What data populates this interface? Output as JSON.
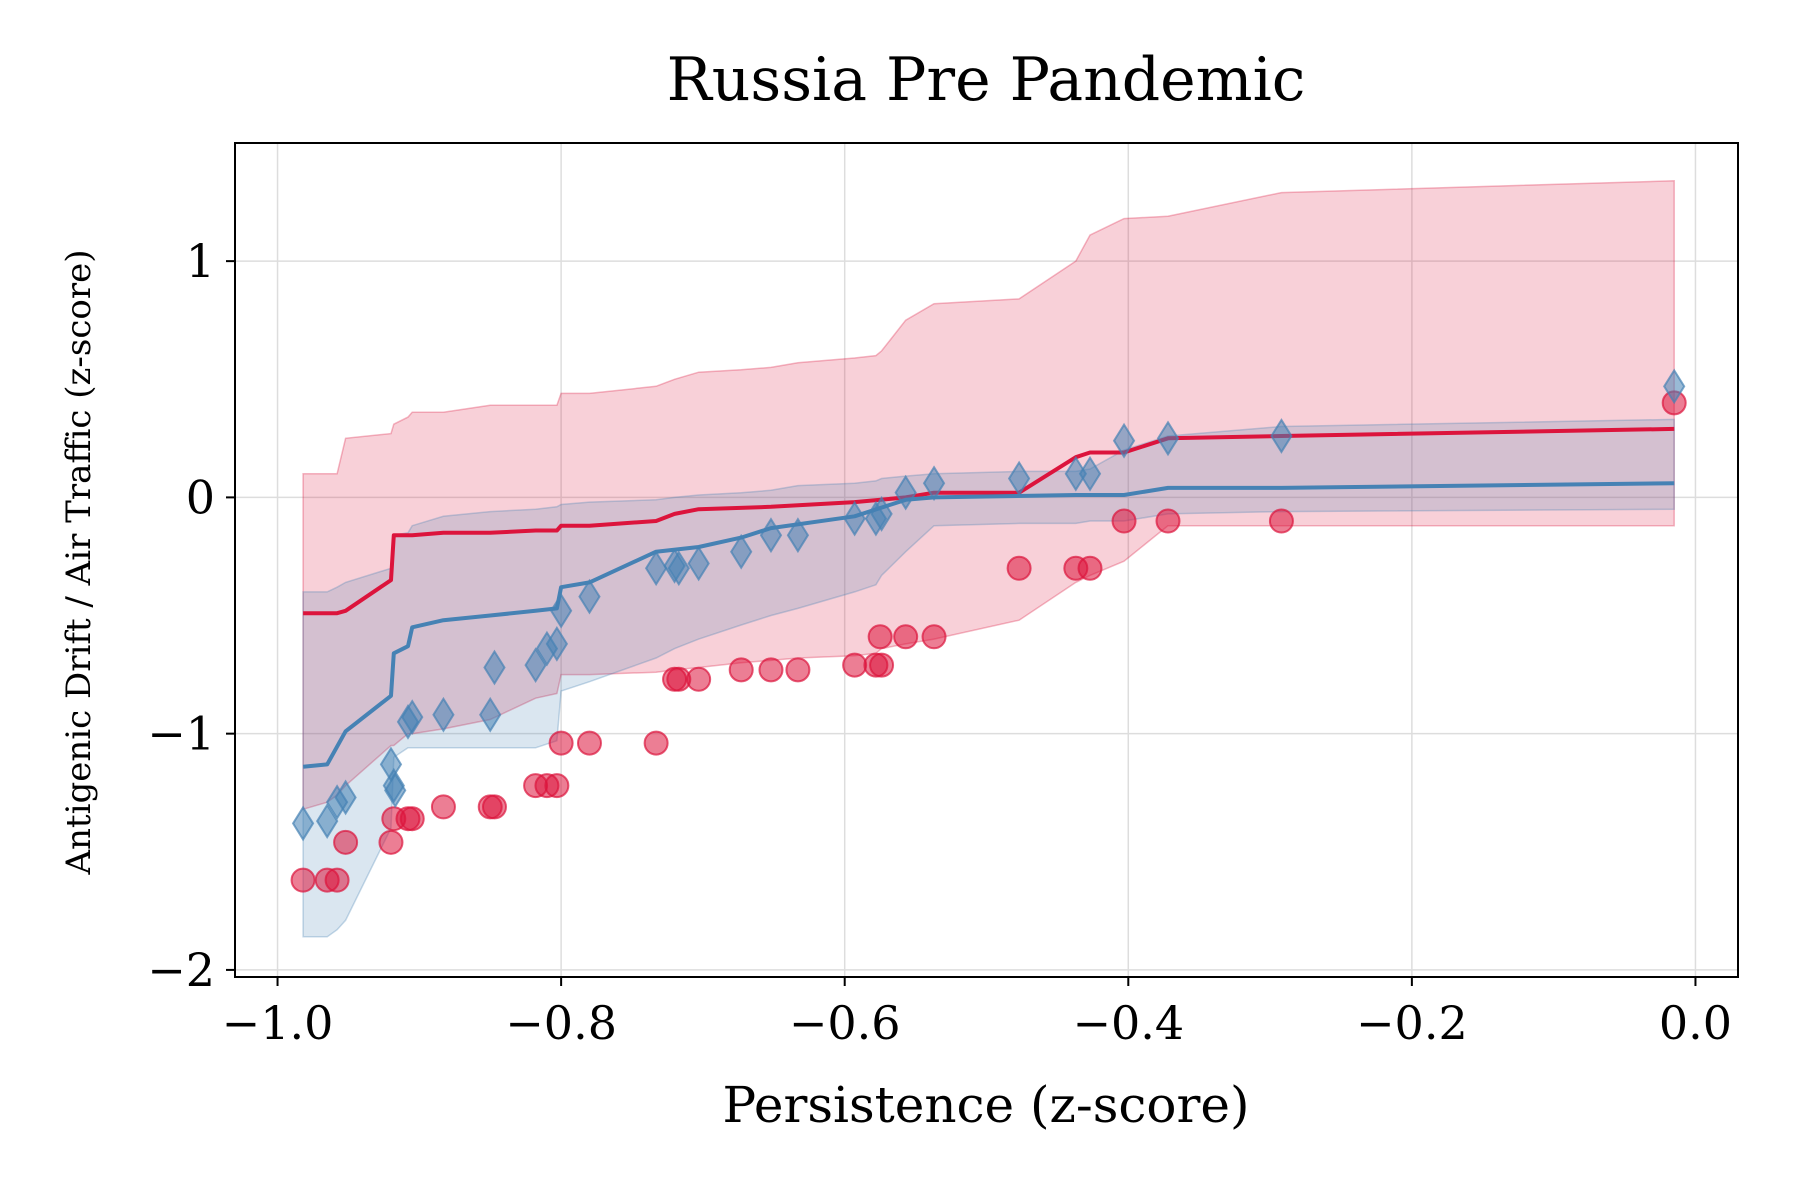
{
  "chart_data": {
    "type": "line",
    "title": "Russia Pre Pandemic",
    "xlabel": "Persistence (z-score)",
    "ylabel": "Antigenic Drift / Air Traffic (z-score)",
    "xlim": [
      -1.03,
      0.03
    ],
    "ylim": [
      -2.03,
      1.5
    ],
    "xticks": [
      -1.0,
      -0.8,
      -0.6,
      -0.4,
      -0.2,
      0.0
    ],
    "xtick_labels": [
      "−1.0",
      "−0.8",
      "−0.6",
      "−0.4",
      "−0.2",
      "0.0"
    ],
    "yticks": [
      -2,
      -1,
      0,
      1
    ],
    "ytick_labels": [
      "−2",
      "−1",
      "0",
      "1"
    ],
    "grid": true,
    "legend": false,
    "colors": {
      "red": "#dc143c",
      "blue": "#4682b4"
    },
    "series": [
      {
        "marker": "circle",
        "color": "#dc143c",
        "points": [
          [
            -0.982,
            -1.62
          ],
          [
            -0.965,
            -1.62
          ],
          [
            -0.958,
            -1.62
          ],
          [
            -0.952,
            -1.46
          ],
          [
            -0.92,
            -1.46
          ],
          [
            -0.918,
            -1.36
          ],
          [
            -0.908,
            -1.36
          ],
          [
            -0.905,
            -1.36
          ],
          [
            -0.883,
            -1.31
          ],
          [
            -0.85,
            -1.31
          ],
          [
            -0.847,
            -1.31
          ],
          [
            -0.818,
            -1.22
          ],
          [
            -0.81,
            -1.22
          ],
          [
            -0.803,
            -1.22
          ],
          [
            -0.8,
            -1.04
          ],
          [
            -0.78,
            -1.04
          ],
          [
            -0.733,
            -1.04
          ],
          [
            -0.72,
            -0.77
          ],
          [
            -0.717,
            -0.77
          ],
          [
            -0.703,
            -0.77
          ],
          [
            -0.673,
            -0.73
          ],
          [
            -0.652,
            -0.73
          ],
          [
            -0.633,
            -0.73
          ],
          [
            -0.593,
            -0.71
          ],
          [
            -0.578,
            -0.71
          ],
          [
            -0.574,
            -0.71
          ],
          [
            -0.575,
            -0.59
          ],
          [
            -0.557,
            -0.59
          ],
          [
            -0.537,
            -0.59
          ],
          [
            -0.477,
            -0.3
          ],
          [
            -0.437,
            -0.3
          ],
          [
            -0.427,
            -0.3
          ],
          [
            -0.403,
            -0.1
          ],
          [
            -0.372,
            -0.1
          ],
          [
            -0.292,
            -0.1
          ],
          [
            -0.015,
            0.4
          ]
        ]
      },
      {
        "marker": "diamond",
        "color": "#4682b4",
        "points": [
          [
            -0.982,
            -1.38
          ],
          [
            -0.965,
            -1.37
          ],
          [
            -0.958,
            -1.29
          ],
          [
            -0.952,
            -1.27
          ],
          [
            -0.92,
            -1.13
          ],
          [
            -0.918,
            -1.22
          ],
          [
            -0.917,
            -1.24
          ],
          [
            -0.908,
            -0.95
          ],
          [
            -0.905,
            -0.93
          ],
          [
            -0.883,
            -0.92
          ],
          [
            -0.85,
            -0.92
          ],
          [
            -0.847,
            -0.72
          ],
          [
            -0.818,
            -0.71
          ],
          [
            -0.81,
            -0.64
          ],
          [
            -0.803,
            -0.62
          ],
          [
            -0.8,
            -0.48
          ],
          [
            -0.78,
            -0.42
          ],
          [
            -0.733,
            -0.3
          ],
          [
            -0.72,
            -0.29
          ],
          [
            -0.717,
            -0.3
          ],
          [
            -0.703,
            -0.28
          ],
          [
            -0.673,
            -0.23
          ],
          [
            -0.652,
            -0.16
          ],
          [
            -0.633,
            -0.16
          ],
          [
            -0.593,
            -0.09
          ],
          [
            -0.578,
            -0.09
          ],
          [
            -0.574,
            -0.07
          ],
          [
            -0.557,
            0.02
          ],
          [
            -0.537,
            0.06
          ],
          [
            -0.477,
            0.08
          ],
          [
            -0.437,
            0.1
          ],
          [
            -0.427,
            0.1
          ],
          [
            -0.403,
            0.24
          ],
          [
            -0.372,
            0.25
          ],
          [
            -0.292,
            0.26
          ],
          [
            -0.015,
            0.47
          ]
        ]
      },
      {
        "kind": "line",
        "color": "#dc143c",
        "points": [
          [
            -0.982,
            -0.49
          ],
          [
            -0.958,
            -0.49
          ],
          [
            -0.952,
            -0.48
          ],
          [
            -0.92,
            -0.35
          ],
          [
            -0.918,
            -0.16
          ],
          [
            -0.905,
            -0.16
          ],
          [
            -0.883,
            -0.15
          ],
          [
            -0.85,
            -0.15
          ],
          [
            -0.818,
            -0.14
          ],
          [
            -0.803,
            -0.14
          ],
          [
            -0.8,
            -0.12
          ],
          [
            -0.78,
            -0.12
          ],
          [
            -0.733,
            -0.1
          ],
          [
            -0.72,
            -0.07
          ],
          [
            -0.703,
            -0.05
          ],
          [
            -0.652,
            -0.04
          ],
          [
            -0.593,
            -0.02
          ],
          [
            -0.557,
            0.0
          ],
          [
            -0.537,
            0.02
          ],
          [
            -0.477,
            0.02
          ],
          [
            -0.437,
            0.17
          ],
          [
            -0.427,
            0.19
          ],
          [
            -0.403,
            0.19
          ],
          [
            -0.372,
            0.25
          ],
          [
            -0.292,
            0.26
          ],
          [
            -0.015,
            0.29
          ]
        ]
      },
      {
        "kind": "line",
        "color": "#4682b4",
        "points": [
          [
            -0.982,
            -1.14
          ],
          [
            -0.965,
            -1.13
          ],
          [
            -0.952,
            -0.99
          ],
          [
            -0.92,
            -0.84
          ],
          [
            -0.918,
            -0.66
          ],
          [
            -0.908,
            -0.63
          ],
          [
            -0.905,
            -0.55
          ],
          [
            -0.883,
            -0.52
          ],
          [
            -0.85,
            -0.5
          ],
          [
            -0.818,
            -0.48
          ],
          [
            -0.803,
            -0.47
          ],
          [
            -0.8,
            -0.38
          ],
          [
            -0.78,
            -0.36
          ],
          [
            -0.733,
            -0.23
          ],
          [
            -0.703,
            -0.21
          ],
          [
            -0.673,
            -0.17
          ],
          [
            -0.652,
            -0.13
          ],
          [
            -0.593,
            -0.08
          ],
          [
            -0.557,
            -0.01
          ],
          [
            -0.537,
            0.0
          ],
          [
            -0.437,
            0.01
          ],
          [
            -0.403,
            0.01
          ],
          [
            -0.372,
            0.04
          ],
          [
            -0.292,
            0.04
          ],
          [
            -0.015,
            0.06
          ]
        ]
      },
      {
        "kind": "band",
        "color": "#dc143c",
        "x": [
          -0.982,
          -0.965,
          -0.958,
          -0.952,
          -0.92,
          -0.918,
          -0.908,
          -0.905,
          -0.883,
          -0.85,
          -0.818,
          -0.803,
          -0.8,
          -0.78,
          -0.733,
          -0.72,
          -0.703,
          -0.673,
          -0.652,
          -0.633,
          -0.593,
          -0.578,
          -0.574,
          -0.557,
          -0.537,
          -0.477,
          -0.437,
          -0.427,
          -0.403,
          -0.372,
          -0.292,
          -0.015
        ],
        "lower": [
          -1.32,
          -1.29,
          -1.26,
          -1.22,
          -1.05,
          -1.05,
          -1.0,
          -1.0,
          -0.98,
          -0.94,
          -0.85,
          -0.83,
          -0.75,
          -0.75,
          -0.74,
          -0.73,
          -0.72,
          -0.7,
          -0.69,
          -0.68,
          -0.67,
          -0.66,
          -0.64,
          -0.62,
          -0.6,
          -0.52,
          -0.36,
          -0.33,
          -0.27,
          -0.12,
          -0.12,
          -0.12
        ],
        "upper": [
          0.1,
          0.1,
          0.1,
          0.25,
          0.27,
          0.31,
          0.34,
          0.36,
          0.36,
          0.39,
          0.39,
          0.39,
          0.44,
          0.44,
          0.47,
          0.5,
          0.53,
          0.54,
          0.55,
          0.57,
          0.59,
          0.6,
          0.62,
          0.75,
          0.82,
          0.84,
          1.0,
          1.11,
          1.18,
          1.19,
          1.29,
          1.34
        ]
      },
      {
        "kind": "band",
        "color": "#4682b4",
        "x": [
          -0.982,
          -0.965,
          -0.958,
          -0.952,
          -0.92,
          -0.918,
          -0.908,
          -0.905,
          -0.883,
          -0.85,
          -0.818,
          -0.803,
          -0.8,
          -0.78,
          -0.733,
          -0.72,
          -0.703,
          -0.673,
          -0.652,
          -0.633,
          -0.593,
          -0.578,
          -0.574,
          -0.557,
          -0.537,
          -0.477,
          -0.437,
          -0.427,
          -0.403,
          -0.372,
          -0.292,
          -0.015
        ],
        "lower": [
          -1.86,
          -1.86,
          -1.83,
          -1.79,
          -1.4,
          -1.1,
          -1.06,
          -1.06,
          -1.06,
          -1.06,
          -1.06,
          -1.03,
          -0.82,
          -0.78,
          -0.68,
          -0.64,
          -0.6,
          -0.54,
          -0.5,
          -0.47,
          -0.4,
          -0.37,
          -0.33,
          -0.23,
          -0.12,
          -0.11,
          -0.11,
          -0.1,
          -0.1,
          -0.07,
          -0.06,
          -0.05
        ],
        "upper": [
          -0.4,
          -0.4,
          -0.38,
          -0.36,
          -0.3,
          -0.16,
          -0.15,
          -0.12,
          -0.08,
          -0.06,
          -0.05,
          -0.04,
          -0.03,
          -0.02,
          -0.01,
          0.0,
          0.01,
          0.02,
          0.03,
          0.05,
          0.06,
          0.07,
          0.08,
          0.09,
          0.1,
          0.11,
          0.11,
          0.12,
          0.2,
          0.26,
          0.3,
          0.33
        ]
      }
    ]
  }
}
